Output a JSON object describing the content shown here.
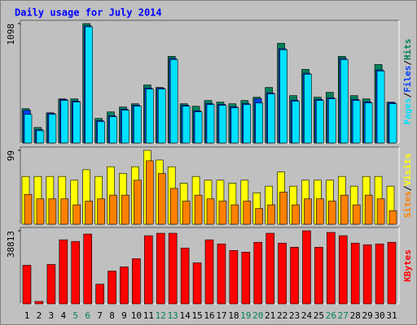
{
  "title": "Daily usage for July 2014",
  "legend_separator": "/",
  "chart_data": [
    {
      "type": "bar",
      "ylim": [
        0,
        1098
      ],
      "yticks": [
        1098
      ],
      "series": [
        {
          "name": "Hits",
          "color": "#00805c",
          "values": [
            316,
            143,
            278,
            406,
            406,
            1098,
            226,
            286,
            331,
            361,
            534,
            511,
            797,
            361,
            338,
            391,
            376,
            361,
            391,
            421,
            511,
            917,
            436,
            677,
            421,
            466,
            797,
            436,
            406,
            722,
            376
          ]
        },
        {
          "name": "Files",
          "color": "#0040ff",
          "values": [
            300,
            123,
            273,
            401,
            386,
            1078,
            206,
            251,
            311,
            348,
            506,
            506,
            777,
            348,
            296,
            363,
            356,
            333,
            363,
            406,
            461,
            867,
            394,
            642,
            401,
            416,
            777,
            401,
            378,
            672,
            371
          ]
        },
        {
          "name": "Pages",
          "color": "#00e0ff",
          "values": [
            263,
            113,
            263,
            391,
            376,
            1068,
            196,
            241,
            301,
            338,
            496,
            496,
            767,
            338,
            286,
            353,
            346,
            323,
            353,
            368,
            451,
            857,
            384,
            632,
            391,
            406,
            767,
            391,
            368,
            662,
            361
          ]
        }
      ]
    },
    {
      "type": "bar",
      "ylim": [
        0,
        99
      ],
      "yticks": [
        99
      ],
      "series": [
        {
          "name": "Visits",
          "color": "#ffff00",
          "values": [
            64,
            64,
            64,
            64,
            59,
            73,
            64,
            77,
            68,
            77,
            99,
            86,
            77,
            55,
            64,
            59,
            59,
            55,
            59,
            42,
            51,
            70,
            51,
            59,
            59,
            59,
            64,
            51,
            64,
            64,
            51
          ]
        },
        {
          "name": "Sites",
          "color": "#ff8000",
          "values": [
            40,
            34,
            34,
            34,
            26,
            31,
            34,
            39,
            39,
            59,
            85,
            68,
            48,
            31,
            39,
            34,
            31,
            26,
            31,
            21,
            26,
            43,
            26,
            34,
            34,
            31,
            39,
            26,
            39,
            34,
            18
          ]
        }
      ]
    },
    {
      "type": "bar",
      "ylim": [
        0,
        38813
      ],
      "yticks": [
        38813
      ],
      "categories": [
        "1",
        "2",
        "3",
        "4",
        "5",
        "6",
        "7",
        "8",
        "9",
        "10",
        "11",
        "12",
        "13",
        "14",
        "15",
        "16",
        "17",
        "18",
        "19",
        "20",
        "21",
        "22",
        "23",
        "24",
        "25",
        "26",
        "27",
        "28",
        "29",
        "30",
        "31"
      ],
      "category_colors": [
        "#000000",
        "#000000",
        "#000000",
        "#000000",
        "#00805c",
        "#00805c",
        "#000000",
        "#000000",
        "#000000",
        "#000000",
        "#000000",
        "#00805c",
        "#00805c",
        "#000000",
        "#000000",
        "#000000",
        "#000000",
        "#000000",
        "#00805c",
        "#00805c",
        "#000000",
        "#000000",
        "#000000",
        "#000000",
        "#000000",
        "#00805c",
        "#00805c",
        "#000000",
        "#000000",
        "#000000",
        "#000000"
      ],
      "series": [
        {
          "name": "KBytes",
          "color": "#ff0000",
          "values": [
            20492,
            1308,
            20928,
            34008,
            33136,
            37060,
            10464,
            17440,
            19620,
            23980,
            36188,
            37496,
            37496,
            29648,
            21800,
            34008,
            31828,
            28340,
            27468,
            32700,
            37496,
            32264,
            30084,
            38813,
            30084,
            37932,
            36188,
            32264,
            31392,
            31828,
            32700
          ]
        }
      ]
    }
  ]
}
